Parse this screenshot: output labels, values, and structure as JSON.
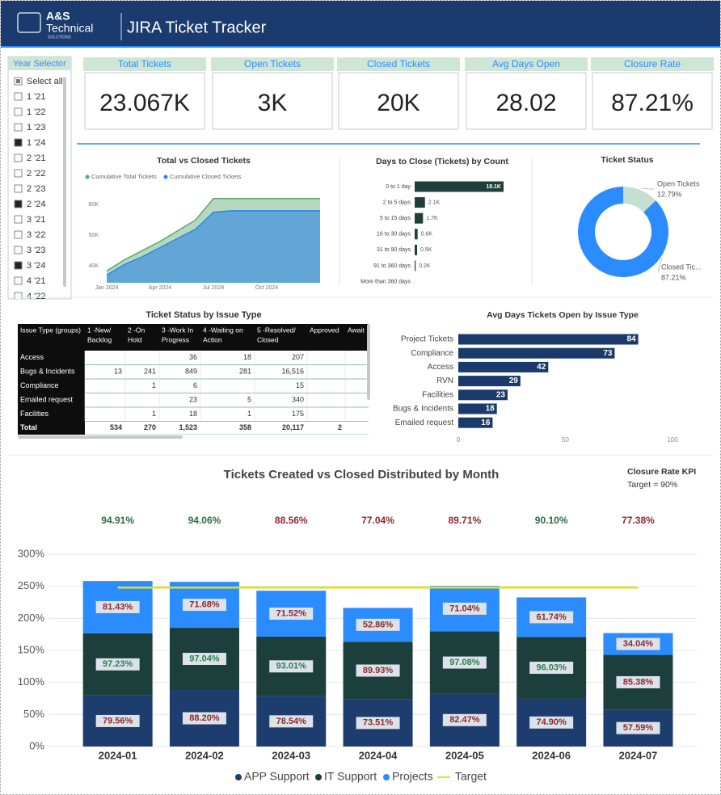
{
  "header": {
    "logo_name": "A&S",
    "logo_sub": "Technical",
    "logo_tag": "SOLUTIONS",
    "title": "JIRA Ticket Tracker"
  },
  "year_selector": {
    "title": "Year Selector",
    "items": [
      {
        "label": "Select all",
        "state": "partial"
      },
      {
        "label": "1 '21",
        "state": "off"
      },
      {
        "label": "1 '22",
        "state": "off"
      },
      {
        "label": "1 '23",
        "state": "off"
      },
      {
        "label": "1 '24",
        "state": "on"
      },
      {
        "label": "2 '21",
        "state": "off"
      },
      {
        "label": "2 '22",
        "state": "off"
      },
      {
        "label": "2 '23",
        "state": "off"
      },
      {
        "label": "2 '24",
        "state": "on"
      },
      {
        "label": "3 '21",
        "state": "off"
      },
      {
        "label": "3 '22",
        "state": "off"
      },
      {
        "label": "3 '23",
        "state": "off"
      },
      {
        "label": "3 '24",
        "state": "on"
      },
      {
        "label": "4 '21",
        "state": "off"
      },
      {
        "label": "4 '22",
        "state": "off"
      }
    ]
  },
  "kpi_cards": [
    {
      "label": "Total Tickets",
      "value": "23.067K"
    },
    {
      "label": "Open Tickets",
      "value": "3K"
    },
    {
      "label": "Closed Tickets",
      "value": "20K"
    },
    {
      "label": "Avg Days Open",
      "value": "28.02"
    },
    {
      "label": "Closure Rate",
      "value": "87.21%"
    }
  ],
  "table": {
    "title": "Ticket Status by Issue Type",
    "columns": [
      [
        "Issue Type (groups)"
      ],
      [
        "1 -New/",
        "Backlog"
      ],
      [
        "2 -On",
        "Hold"
      ],
      [
        "3 -Work In",
        "Progress"
      ],
      [
        "4 -Waiting on",
        "Action"
      ],
      [
        "5 -Resolved/",
        "Closed"
      ],
      [
        "Approved"
      ],
      [
        "Await"
      ]
    ],
    "rows": [
      [
        "Access",
        null,
        null,
        "36",
        "18",
        "207",
        null,
        null
      ],
      [
        "Bugs & Incidents",
        "13",
        "241",
        "849",
        "281",
        "16,516",
        null,
        null
      ],
      [
        "Compliance",
        null,
        "1",
        "6",
        null,
        "15",
        null,
        null
      ],
      [
        "Emailed request",
        null,
        null,
        "23",
        "5",
        "340",
        null,
        null
      ],
      [
        "Facilities",
        null,
        "1",
        "18",
        "1",
        "175",
        null,
        null
      ],
      [
        "Total",
        "534",
        "270",
        "1,523",
        "358",
        "20,117",
        "2",
        null
      ]
    ]
  },
  "chart_data": [
    {
      "type": "area",
      "title": "Total vs Closed Tickets",
      "categories": [
        "Jan 2024",
        null,
        null,
        "Apr 2024",
        null,
        null,
        "Jul 2024",
        null,
        null,
        "Oct 2024",
        null,
        null
      ],
      "series": [
        {
          "name": "Cumulative Total Tickets",
          "color": "#5aa872",
          "values": [
            38400,
            42000,
            45000,
            48000,
            51500,
            55000,
            62000,
            62000,
            62000,
            62000,
            62000,
            62000
          ]
        },
        {
          "name": "Cumulative Closed Tickets",
          "color": "#2b86e8",
          "values": [
            37000,
            40500,
            43000,
            46000,
            49000,
            52000,
            57500,
            58000,
            58000,
            58000,
            58000,
            58000
          ]
        }
      ],
      "ylim": [
        34500,
        63500
      ],
      "yticks": [
        {
          "value": 40000,
          "label": "40K"
        },
        {
          "value": 50000,
          "label": "50K"
        },
        {
          "value": 60000,
          "label": "60K"
        }
      ]
    },
    {
      "type": "hbar",
      "title": "Days to Close (Tickets) by Count",
      "categories": [
        "0 to 1 day",
        "2 to 5 days",
        "5 to 15 days",
        "16 to 30 days",
        "31 to 90 days",
        "91 to 360 days",
        "More than 360 days"
      ],
      "values": [
        18100,
        2100,
        1700,
        600,
        500,
        200,
        null
      ],
      "value_labels": [
        "18.1K",
        "2.1K",
        "1.7K",
        "0.6K",
        "0.5K",
        "0.2K",
        null
      ],
      "color": "#1e3f3a"
    },
    {
      "type": "donut",
      "title": "Ticket Status",
      "categories": [
        "Open Tickets",
        "Closed Tic..."
      ],
      "values": [
        12.79,
        87.21
      ],
      "value_labels": [
        "12.79%",
        "87.21%"
      ],
      "colors": [
        "#c5dfd0",
        "#2b8cff"
      ]
    },
    {
      "type": "hbar",
      "title": "Avg Days Tickets Open by Issue Type",
      "categories": [
        "Project Tickets",
        "Compliance",
        "Access",
        "RVN",
        "Facilities",
        "Bugs & Incidents",
        "Emailed request"
      ],
      "values": [
        84,
        73,
        42,
        29,
        23,
        18,
        16
      ],
      "color": "#1a3a6b",
      "xlim": [
        0,
        100
      ],
      "xticks": [
        0,
        50,
        100
      ]
    },
    {
      "type": "stacked_bar",
      "title": "Tickets Created vs Closed Distributed by Month",
      "kpi_title": "Closure Rate KPI",
      "kpi_note": "Target = 90%",
      "categories": [
        "2024-01",
        "2024-02",
        "2024-03",
        "2024-04",
        "2024-05",
        "2024-06",
        "2024-07"
      ],
      "series": [
        {
          "name": "APP Support",
          "color": "#1c3d6e",
          "values": [
            79.56,
            88.2,
            78.54,
            73.51,
            82.47,
            74.9,
            57.59
          ],
          "value_labels": [
            "79.56%",
            "88.20%",
            "78.54%",
            "73.51%",
            "82.47%",
            "74.90%",
            "57.59%"
          ],
          "label_colors": [
            "#8b2a2a",
            "#8b2a2a",
            "#8b2a2a",
            "#8b2a2a",
            "#8b2a2a",
            "#8b2a2a",
            "#8b2a2a"
          ]
        },
        {
          "name": "IT Support",
          "color": "#1d3f3b",
          "values": [
            97.23,
            97.04,
            93.01,
            89.93,
            97.08,
            96.03,
            85.38
          ],
          "value_labels": [
            "97.23%",
            "97.04%",
            "93.01%",
            "89.93%",
            "97.08%",
            "96.03%",
            "85.38%"
          ],
          "label_colors": [
            "#2e7d4f",
            "#2e7d4f",
            "#2e7d4f",
            "#8b2a2a",
            "#2e7d4f",
            "#2e7d4f",
            "#8b2a2a"
          ]
        },
        {
          "name": "Projects",
          "color": "#2b8cff",
          "values": [
            81.43,
            71.68,
            71.52,
            52.86,
            71.04,
            61.74,
            34.04
          ],
          "value_labels": [
            "81.43%",
            "71.68%",
            "71.52%",
            "52.86%",
            "71.04%",
            "61.74%",
            "34.04%"
          ],
          "label_colors": [
            "#8b2a2a",
            "#8b2a2a",
            "#8b2a2a",
            "#8b2a2a",
            "#8b2a2a",
            "#8b2a2a",
            "#8b2a2a"
          ]
        },
        {
          "name": "Target",
          "type": "line",
          "color": "#e6e01a",
          "values": [
            248,
            248,
            248,
            248,
            248,
            248,
            248
          ]
        }
      ],
      "closure_rates": {
        "values": [
          94.91,
          94.06,
          88.56,
          77.04,
          89.71,
          90.1,
          77.38
        ],
        "value_labels": [
          "94.91%",
          "94.06%",
          "88.56%",
          "77.04%",
          "89.71%",
          "90.10%",
          "77.38%"
        ],
        "colors": [
          "#2e6b45",
          "#2e6b45",
          "#8b2a2a",
          "#8b2a2a",
          "#8b2a2a",
          "#2e6b45",
          "#8b2a2a"
        ]
      },
      "ylim": [
        0,
        300
      ],
      "yticks": [
        {
          "value": 0,
          "label": "0%"
        },
        {
          "value": 50,
          "label": "50%"
        },
        {
          "value": 100,
          "label": "100%"
        },
        {
          "value": 150,
          "label": "150%"
        },
        {
          "value": 200,
          "label": "200%"
        },
        {
          "value": 250,
          "label": "250%"
        },
        {
          "value": 300,
          "label": "300%"
        }
      ],
      "grid": true
    }
  ]
}
